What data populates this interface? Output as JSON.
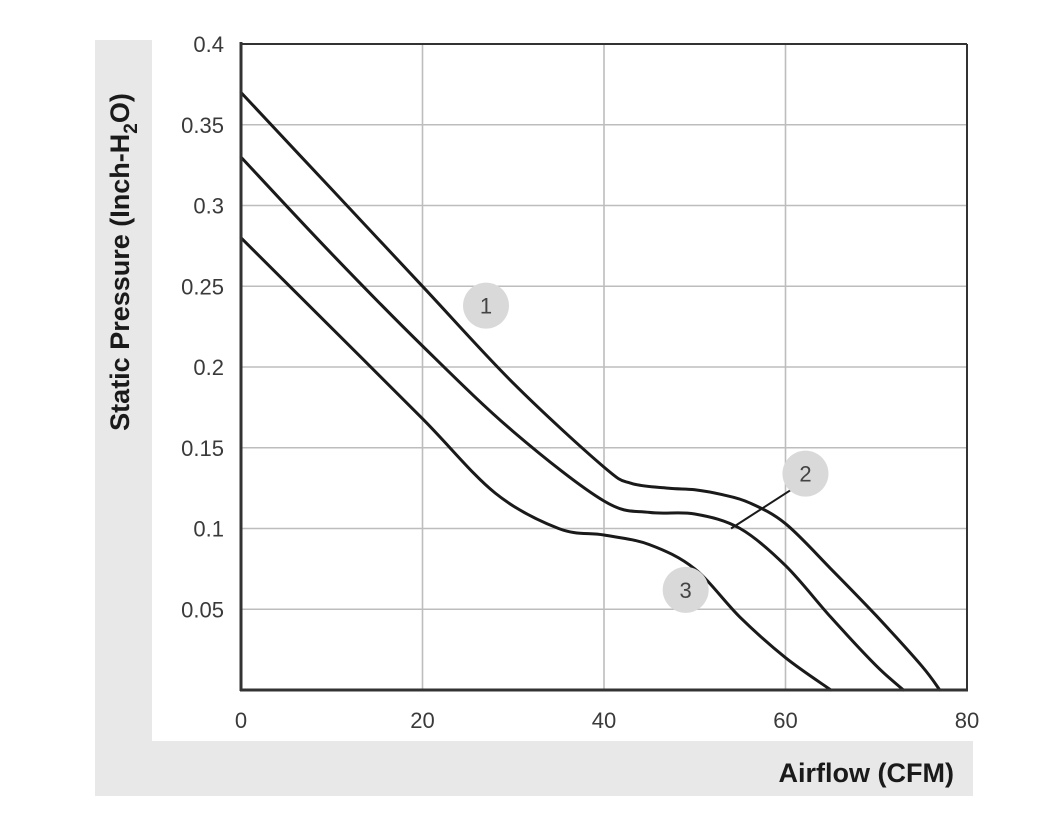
{
  "chart_data": {
    "type": "line",
    "title": "",
    "xlabel": "Airflow (CFM)",
    "ylabel_parts": {
      "before": "Static Pressure (Inch-H",
      "sub": "2",
      "after": "O)"
    },
    "xlim": [
      0,
      80
    ],
    "ylim": [
      0,
      0.4
    ],
    "x_ticks": [
      {
        "value": 0,
        "label": "0"
      },
      {
        "value": 20,
        "label": "20"
      },
      {
        "value": 40,
        "label": "40"
      },
      {
        "value": 60,
        "label": "60"
      },
      {
        "value": 80,
        "label": "80"
      }
    ],
    "y_ticks": [
      {
        "value": 0.05,
        "label": "0.05"
      },
      {
        "value": 0.1,
        "label": "0.1"
      },
      {
        "value": 0.15,
        "label": "0.15"
      },
      {
        "value": 0.2,
        "label": "0.2"
      },
      {
        "value": 0.25,
        "label": "0.25"
      },
      {
        "value": 0.3,
        "label": "0.3"
      },
      {
        "value": 0.35,
        "label": "0.35"
      },
      {
        "value": 0.4,
        "label": "0.4"
      }
    ],
    "grid": true,
    "series": [
      {
        "marker_label": "1",
        "x": [
          0,
          10,
          20,
          30,
          40,
          43,
          47,
          50,
          53,
          56,
          60,
          65,
          70,
          75,
          77
        ],
        "y": [
          0.37,
          0.31,
          0.25,
          0.19,
          0.138,
          0.128,
          0.125,
          0.124,
          0.121,
          0.116,
          0.103,
          0.075,
          0.046,
          0.015,
          0.0
        ]
      },
      {
        "marker_label": "2",
        "x": [
          0,
          10,
          20,
          30,
          40,
          45,
          50,
          55,
          60,
          65,
          70,
          73
        ],
        "y": [
          0.33,
          0.27,
          0.213,
          0.16,
          0.117,
          0.11,
          0.109,
          0.1,
          0.077,
          0.045,
          0.015,
          0.0
        ]
      },
      {
        "marker_label": "3",
        "x": [
          0,
          10,
          20,
          28,
          35,
          40,
          45,
          50,
          55,
          60,
          65
        ],
        "y": [
          0.28,
          0.224,
          0.168,
          0.122,
          0.1,
          0.096,
          0.09,
          0.075,
          0.045,
          0.02,
          0.0
        ]
      }
    ],
    "markers": [
      {
        "label": "1",
        "x": 27.0,
        "y": 0.238
      },
      {
        "label": "2",
        "x": 62.2,
        "y": 0.134,
        "leader_to": {
          "x": 54.0,
          "y": 0.1
        }
      },
      {
        "label": "3",
        "x": 49.0,
        "y": 0.062
      }
    ],
    "colors": {
      "line": "#1a1a1a",
      "grid": "#bdbdbd",
      "axis": "#333333",
      "panel": "#e8e8e8",
      "marker_fill": "#d9d9d9"
    }
  }
}
